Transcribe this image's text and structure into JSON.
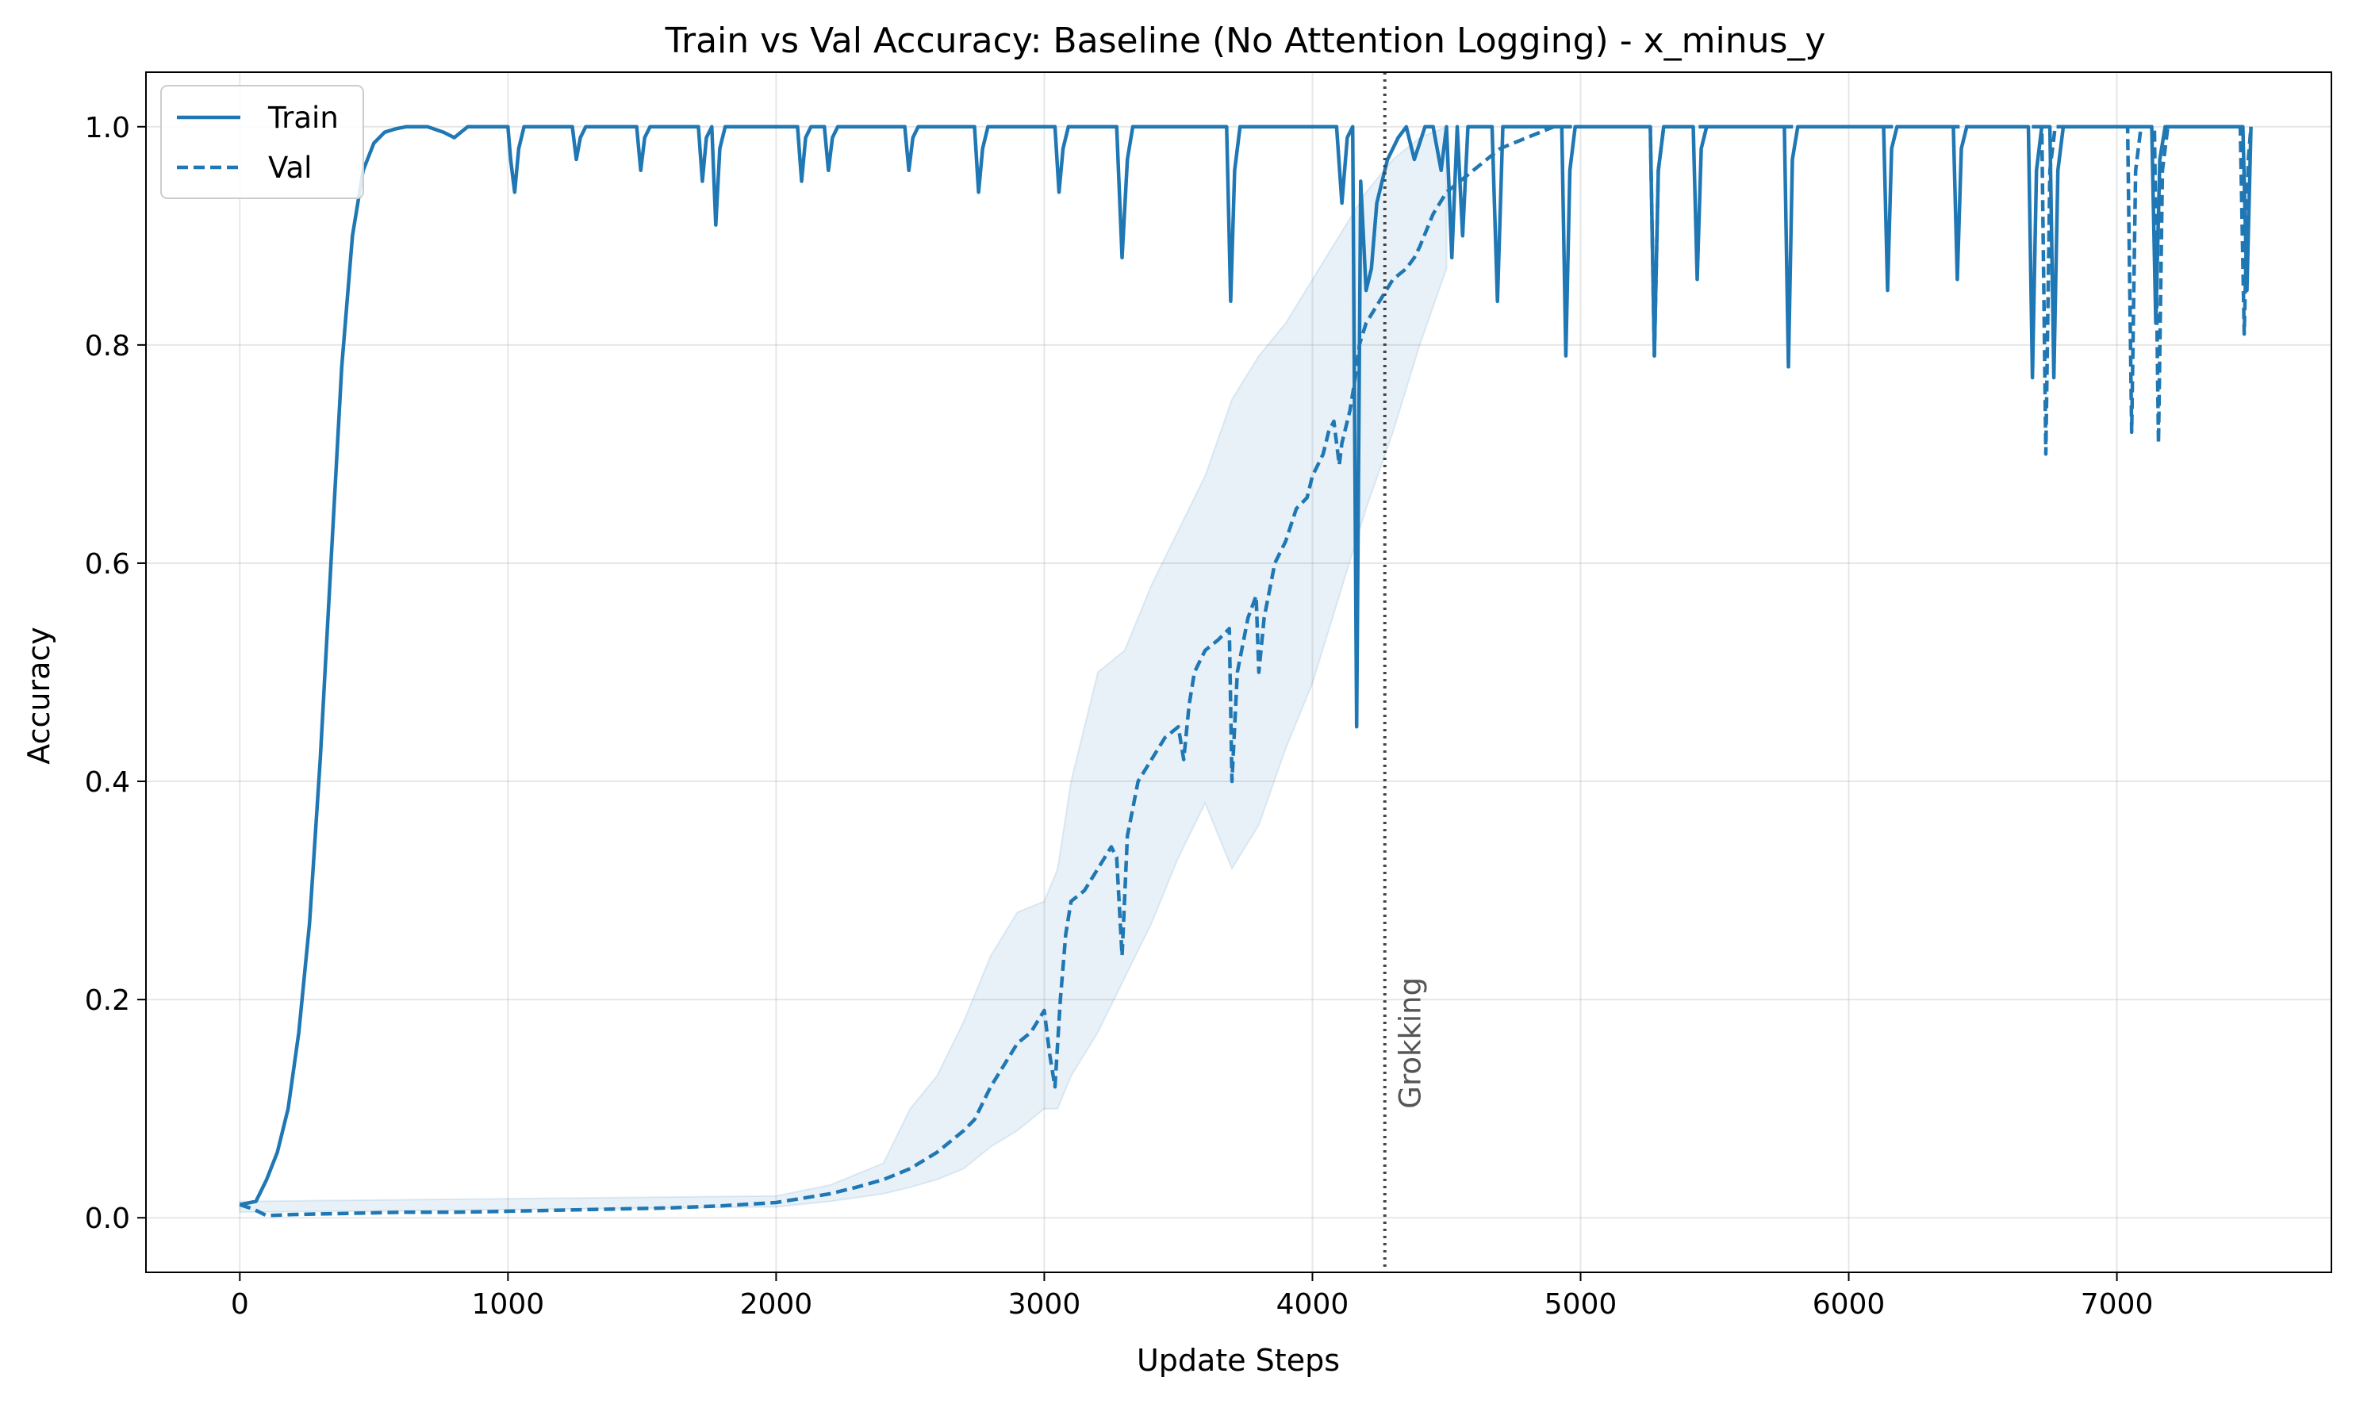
{
  "chart_data": {
    "type": "line",
    "title": "Train vs Val Accuracy: Baseline (No Attention Logging) - x_minus_y",
    "xlabel": "Update Steps",
    "ylabel": "Accuracy",
    "xlim": [
      -350,
      7800
    ],
    "ylim": [
      -0.05,
      1.05
    ],
    "xticks": [
      0,
      1000,
      2000,
      3000,
      4000,
      5000,
      6000,
      7000
    ],
    "yticks": [
      0.0,
      0.2,
      0.4,
      0.6,
      0.8,
      1.0
    ],
    "grid": true,
    "legend_position": "top-left",
    "colors": {
      "line": "#1f77b4",
      "band": "#1f77b4",
      "annotation": "#444444"
    },
    "annotation": {
      "label": "Grokking",
      "x": 4270
    },
    "series": [
      {
        "name": "Train",
        "style": "solid",
        "x": [
          0,
          60,
          100,
          140,
          180,
          220,
          260,
          300,
          340,
          380,
          420,
          460,
          500,
          540,
          580,
          620,
          700,
          760,
          800,
          850,
          900,
          1000,
          1010,
          1025,
          1040,
          1060,
          1240,
          1255,
          1270,
          1290,
          1480,
          1495,
          1510,
          1530,
          1710,
          1725,
          1740,
          1760,
          1775,
          1790,
          1810,
          2080,
          2095,
          2110,
          2130,
          2180,
          2195,
          2210,
          2230,
          2480,
          2495,
          2510,
          2530,
          2740,
          2755,
          2770,
          2790,
          3040,
          3055,
          3070,
          3090,
          3270,
          3290,
          3310,
          3330,
          3680,
          3695,
          3710,
          3730,
          4090,
          4110,
          4130,
          4150,
          4165,
          4180,
          4200,
          4220,
          4240,
          4260,
          4280,
          4300,
          4320,
          4350,
          4380,
          4420,
          4450,
          4480,
          4500,
          4520,
          4540,
          4560,
          4580,
          4670,
          4690,
          4710,
          4730,
          4930,
          4945,
          4960,
          4980,
          5260,
          5275,
          5290,
          5310,
          5420,
          5435,
          5450,
          5470,
          5760,
          5775,
          5790,
          5810,
          6130,
          6145,
          6160,
          6180,
          6390,
          6405,
          6420,
          6440,
          6670,
          6685,
          6700,
          6720,
          6750,
          6765,
          6780,
          6800,
          7130,
          7145,
          7160,
          7180,
          7470,
          7485,
          7500
        ],
        "values": [
          0.012,
          0.015,
          0.035,
          0.06,
          0.1,
          0.17,
          0.27,
          0.42,
          0.6,
          0.78,
          0.9,
          0.96,
          0.985,
          0.995,
          0.998,
          1.0,
          1.0,
          0.995,
          0.99,
          1.0,
          1.0,
          1.0,
          0.97,
          0.94,
          0.98,
          1.0,
          1.0,
          0.97,
          0.99,
          1.0,
          1.0,
          0.96,
          0.99,
          1.0,
          1.0,
          0.95,
          0.99,
          1.0,
          0.91,
          0.98,
          1.0,
          1.0,
          0.95,
          0.99,
          1.0,
          1.0,
          0.96,
          0.99,
          1.0,
          1.0,
          0.96,
          0.99,
          1.0,
          1.0,
          0.94,
          0.98,
          1.0,
          1.0,
          0.94,
          0.98,
          1.0,
          1.0,
          0.88,
          0.97,
          1.0,
          1.0,
          0.84,
          0.96,
          1.0,
          1.0,
          0.93,
          0.99,
          1.0,
          0.45,
          0.95,
          0.85,
          0.87,
          0.93,
          0.95,
          0.97,
          0.98,
          0.99,
          1.0,
          0.97,
          1.0,
          1.0,
          0.96,
          1.0,
          0.88,
          1.0,
          0.9,
          1.0,
          1.0,
          0.84,
          1.0,
          1.0,
          1.0,
          0.79,
          0.96,
          1.0,
          1.0,
          0.79,
          0.96,
          1.0,
          1.0,
          0.86,
          0.98,
          1.0,
          1.0,
          0.78,
          0.97,
          1.0,
          1.0,
          0.85,
          0.98,
          1.0,
          1.0,
          0.86,
          0.98,
          1.0,
          1.0,
          0.77,
          0.96,
          1.0,
          1.0,
          0.77,
          0.96,
          1.0,
          1.0,
          0.82,
          0.97,
          1.0,
          1.0,
          0.85,
          1.0
        ]
      },
      {
        "name": "Val",
        "style": "dashed",
        "x": [
          0,
          50,
          100,
          200,
          400,
          600,
          800,
          1000,
          1200,
          1400,
          1600,
          1800,
          2000,
          2100,
          2200,
          2300,
          2400,
          2500,
          2600,
          2700,
          2740,
          2760,
          2800,
          2850,
          2900,
          2950,
          3000,
          3020,
          3040,
          3060,
          3080,
          3100,
          3150,
          3200,
          3250,
          3270,
          3290,
          3310,
          3350,
          3400,
          3450,
          3500,
          3520,
          3540,
          3560,
          3600,
          3650,
          3690,
          3700,
          3720,
          3760,
          3790,
          3800,
          3820,
          3860,
          3900,
          3940,
          3980,
          4000,
          4040,
          4060,
          4080,
          4100,
          4110,
          4140,
          4160,
          4175,
          4200,
          4250,
          4300,
          4350,
          4380,
          4400,
          4450,
          4500,
          4550,
          4600,
          4650,
          4700,
          4800,
          4900,
          4950,
          5000,
          5260,
          5275,
          5290,
          5310,
          6720,
          6735,
          6750,
          6770,
          7040,
          7055,
          7070,
          7090,
          7140,
          7155,
          7170,
          7190,
          7460,
          7475,
          7490,
          7500
        ],
        "values": [
          0.012,
          0.008,
          0.002,
          0.003,
          0.004,
          0.005,
          0.005,
          0.006,
          0.007,
          0.008,
          0.009,
          0.011,
          0.014,
          0.018,
          0.022,
          0.028,
          0.035,
          0.045,
          0.06,
          0.08,
          0.09,
          0.1,
          0.12,
          0.14,
          0.16,
          0.17,
          0.19,
          0.15,
          0.12,
          0.2,
          0.26,
          0.29,
          0.3,
          0.32,
          0.34,
          0.33,
          0.24,
          0.35,
          0.4,
          0.42,
          0.44,
          0.45,
          0.42,
          0.47,
          0.5,
          0.52,
          0.53,
          0.54,
          0.4,
          0.5,
          0.55,
          0.57,
          0.5,
          0.55,
          0.6,
          0.62,
          0.65,
          0.66,
          0.68,
          0.7,
          0.72,
          0.73,
          0.69,
          0.71,
          0.74,
          0.77,
          0.8,
          0.82,
          0.84,
          0.86,
          0.87,
          0.88,
          0.89,
          0.92,
          0.94,
          0.95,
          0.96,
          0.97,
          0.98,
          0.99,
          1.0,
          1.0,
          1.0,
          1.0,
          0.79,
          0.96,
          1.0,
          1.0,
          0.7,
          0.96,
          1.0,
          1.0,
          0.72,
          0.96,
          1.0,
          1.0,
          0.71,
          0.96,
          1.0,
          1.0,
          0.81,
          0.97,
          1.0
        ]
      }
    ],
    "band": {
      "x": [
        0,
        2000,
        2200,
        2400,
        2500,
        2600,
        2700,
        2800,
        2900,
        3000,
        3050,
        3100,
        3200,
        3300,
        3400,
        3500,
        3600,
        3700,
        3800,
        3900,
        4000,
        4100,
        4200,
        4300,
        4400,
        4500
      ],
      "upper": [
        0.015,
        0.02,
        0.03,
        0.05,
        0.1,
        0.13,
        0.18,
        0.24,
        0.28,
        0.29,
        0.32,
        0.4,
        0.5,
        0.52,
        0.58,
        0.63,
        0.68,
        0.75,
        0.79,
        0.82,
        0.86,
        0.9,
        0.94,
        0.97,
        0.99,
        1.0
      ],
      "lower": [
        0.005,
        0.01,
        0.015,
        0.022,
        0.028,
        0.035,
        0.045,
        0.065,
        0.08,
        0.1,
        0.1,
        0.13,
        0.17,
        0.22,
        0.27,
        0.33,
        0.38,
        0.32,
        0.36,
        0.43,
        0.49,
        0.57,
        0.65,
        0.72,
        0.8,
        0.87
      ]
    }
  }
}
